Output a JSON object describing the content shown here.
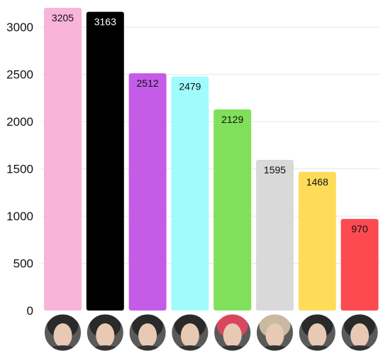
{
  "chart_data": {
    "type": "bar",
    "categories": [
      "",
      "",
      "",
      "",
      "",
      "",
      "",
      ""
    ],
    "values": [
      3205,
      3163,
      2512,
      2479,
      2129,
      1595,
      1468,
      970
    ],
    "colors": [
      "#f9b4d9",
      "#000000",
      "#c45ce8",
      "#a0fcfc",
      "#80e05c",
      "#d9d9d9",
      "#fedc5a",
      "#fc4a50"
    ],
    "label_colors": [
      "#111111",
      "#ffffff",
      "#111111",
      "#111111",
      "#111111",
      "#111111",
      "#111111",
      "#111111"
    ],
    "data_labels": [
      "3205",
      "3163",
      "2512",
      "2479",
      "2129",
      "1595",
      "1468",
      "970"
    ],
    "x_icons": [
      "member-photo",
      "member-photo",
      "member-photo",
      "member-photo",
      "member-photo",
      "member-photo",
      "member-photo",
      "member-photo"
    ],
    "y_ticks": [
      "0",
      "500",
      "1000",
      "1500",
      "2000",
      "2500",
      "3000"
    ],
    "ylim": [
      0,
      3250
    ],
    "grid": true,
    "legend": false,
    "title": "",
    "xlabel": "",
    "ylabel": ""
  }
}
